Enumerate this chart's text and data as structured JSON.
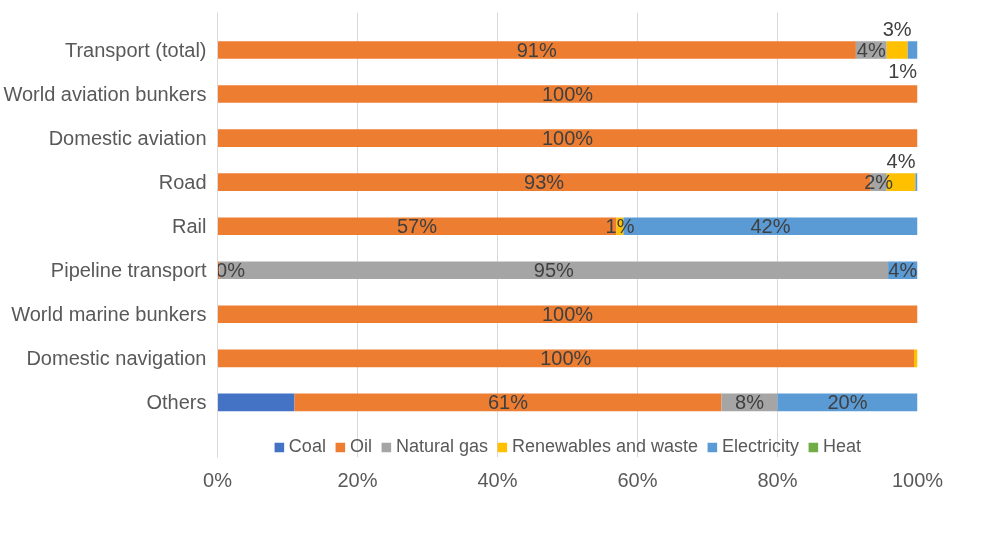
{
  "chart_data": {
    "type": "bar",
    "orientation": "horizontal",
    "stacked": true,
    "categories": [
      "Transport (total)",
      "World aviation bunkers",
      "Domestic aviation",
      "Road",
      "Rail",
      "Pipeline transport",
      "World marine bunkers",
      "Domestic navigation",
      "Others"
    ],
    "series": [
      {
        "name": "Coal",
        "color": "#4472c4",
        "values": [
          0,
          0,
          0,
          0,
          0,
          0,
          0,
          0,
          11
        ],
        "value_labels": [
          null,
          null,
          null,
          null,
          null,
          null,
          null,
          null,
          null
        ]
      },
      {
        "name": "Oil",
        "color": "#ed7d31",
        "values": [
          91.2,
          100,
          100,
          93.3,
          57,
          0.3,
          100,
          99.5,
          61
        ],
        "value_labels": [
          "91%",
          "100%",
          "100%",
          "93%",
          "57%",
          "0%",
          "100%",
          "100%",
          "61%"
        ]
      },
      {
        "name": "Natural gas",
        "color": "#a5a5a5",
        "values": [
          4.4,
          0,
          0,
          2.3,
          0,
          95.5,
          0,
          0,
          8
        ],
        "value_labels": [
          "4%",
          null,
          null,
          "2%",
          null,
          "95%",
          null,
          null,
          "8%"
        ]
      },
      {
        "name": "Renewables and waste",
        "color": "#ffc000",
        "values": [
          3,
          0,
          0,
          4.1,
          1,
          0,
          0,
          0.5,
          0
        ],
        "value_labels": [
          "3%",
          null,
          null,
          "4%",
          "1%",
          null,
          null,
          null,
          null
        ]
      },
      {
        "name": "Electricity",
        "color": "#5b9bd5",
        "values": [
          1.4,
          0,
          0,
          0.3,
          42,
          4.2,
          0,
          0,
          20
        ],
        "value_labels": [
          "1%",
          null,
          null,
          null,
          "42%",
          "4%",
          null,
          null,
          "20%"
        ]
      },
      {
        "name": "Heat",
        "color": "#70ad47",
        "values": [
          0,
          0,
          0,
          0,
          0,
          0,
          0,
          0,
          0
        ],
        "value_labels": [
          null,
          null,
          null,
          null,
          null,
          null,
          null,
          null,
          null
        ]
      }
    ],
    "xlim": [
      0,
      100
    ],
    "xticks": [
      {
        "value": 0,
        "label": "0%"
      },
      {
        "value": 20,
        "label": "20%"
      },
      {
        "value": 40,
        "label": "40%"
      },
      {
        "value": 60,
        "label": "60%"
      },
      {
        "value": 80,
        "label": "80%"
      },
      {
        "value": 100,
        "label": "100%"
      }
    ],
    "grid": "x",
    "legend": "bottom"
  }
}
